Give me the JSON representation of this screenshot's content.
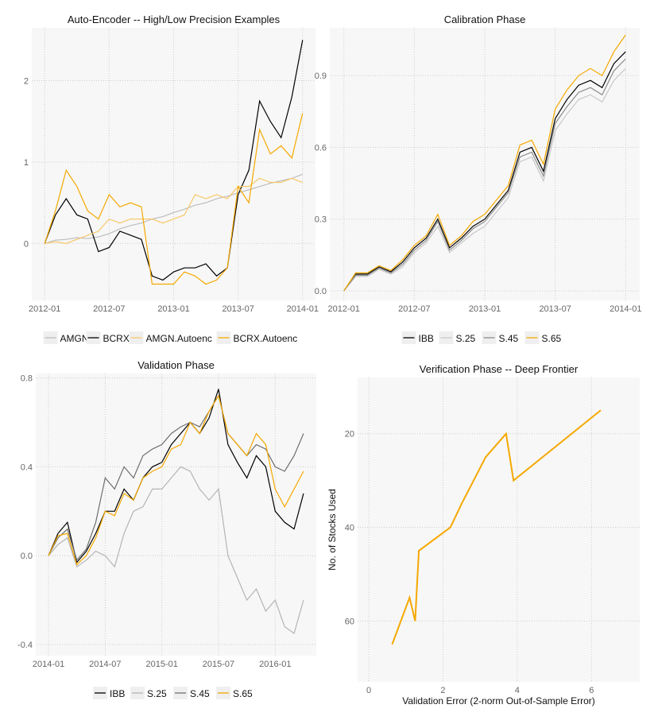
{
  "chart_data": [
    {
      "type": "line",
      "title": "Auto-Encoder -- High/Low Precision Examples",
      "xlabel": "",
      "ylabel": "",
      "x_ticks": [
        "2012-01",
        "2012-07",
        "2013-01",
        "2013-07",
        "2014-01"
      ],
      "y_ticks": [
        0,
        1,
        2
      ],
      "ylim": [
        -0.7,
        2.65
      ],
      "grid": true,
      "legend": "bottom",
      "x": [
        "2012-01",
        "2012-02",
        "2012-03",
        "2012-04",
        "2012-05",
        "2012-06",
        "2012-07",
        "2012-08",
        "2012-09",
        "2012-10",
        "2012-11",
        "2012-12",
        "2013-01",
        "2013-02",
        "2013-03",
        "2013-04",
        "2013-05",
        "2013-06",
        "2013-07",
        "2013-08",
        "2013-09",
        "2013-10",
        "2013-11",
        "2013-12",
        "2014-01"
      ],
      "series": [
        {
          "name": "AMGN",
          "color": "#bdbdbd",
          "values": [
            0,
            0.04,
            0.05,
            0.07,
            0.06,
            0.08,
            0.12,
            0.18,
            0.22,
            0.25,
            0.3,
            0.33,
            0.38,
            0.42,
            0.47,
            0.5,
            0.55,
            0.58,
            0.62,
            0.66,
            0.7,
            0.74,
            0.77,
            0.8,
            0.85
          ]
        },
        {
          "name": "BCRX",
          "color": "#000000",
          "values": [
            0,
            0.35,
            0.55,
            0.35,
            0.3,
            -0.1,
            -0.05,
            0.15,
            0.1,
            0.05,
            -0.4,
            -0.45,
            -0.35,
            -0.3,
            -0.3,
            -0.25,
            -0.4,
            -0.3,
            0.6,
            0.9,
            1.75,
            1.5,
            1.3,
            1.8,
            2.5
          ]
        },
        {
          "name": "AMGN.Autoenc",
          "color": "#f7c86a",
          "values": [
            0,
            0.02,
            0,
            0.05,
            0.1,
            0.15,
            0.3,
            0.25,
            0.3,
            0.3,
            0.3,
            0.25,
            0.3,
            0.35,
            0.6,
            0.55,
            0.6,
            0.55,
            0.7,
            0.7,
            0.8,
            0.75,
            0.75,
            0.8,
            0.75
          ]
        },
        {
          "name": "BCRX.Autoenc",
          "color": "#f5a800",
          "values": [
            0,
            0.4,
            0.9,
            0.7,
            0.4,
            0.3,
            0.6,
            0.45,
            0.5,
            0.45,
            -0.5,
            -0.5,
            -0.5,
            -0.35,
            -0.4,
            -0.5,
            -0.45,
            -0.3,
            0.7,
            0.5,
            1.4,
            1.1,
            1.2,
            1.05,
            1.6
          ]
        }
      ]
    },
    {
      "type": "line",
      "title": "Calibration Phase",
      "xlabel": "",
      "ylabel": "",
      "x_ticks": [
        "2012-01",
        "2012-07",
        "2013-01",
        "2013-07",
        "2014-01"
      ],
      "y_ticks": [
        0.0,
        0.3,
        0.6,
        0.9
      ],
      "y_tick_labels": [
        "0.0",
        "0.3",
        "0.6",
        "0.9"
      ],
      "ylim": [
        -0.04,
        1.1
      ],
      "grid": true,
      "legend": "bottom",
      "x": [
        "2012-01",
        "2012-02",
        "2012-03",
        "2012-04",
        "2012-05",
        "2012-06",
        "2012-07",
        "2012-08",
        "2012-09",
        "2012-10",
        "2012-11",
        "2012-12",
        "2013-01",
        "2013-02",
        "2013-03",
        "2013-04",
        "2013-05",
        "2013-06",
        "2013-07",
        "2013-08",
        "2013-09",
        "2013-10",
        "2013-11",
        "2013-12",
        "2014-01"
      ],
      "series": [
        {
          "name": "IBB",
          "color": "#000000",
          "values": [
            0,
            0.07,
            0.07,
            0.1,
            0.08,
            0.12,
            0.18,
            0.22,
            0.3,
            0.18,
            0.22,
            0.27,
            0.3,
            0.36,
            0.42,
            0.58,
            0.6,
            0.5,
            0.72,
            0.8,
            0.86,
            0.88,
            0.85,
            0.95,
            1.0
          ]
        },
        {
          "name": "S.25",
          "color": "#c8c8c8",
          "values": [
            0,
            0.06,
            0.06,
            0.09,
            0.07,
            0.1,
            0.16,
            0.2,
            0.27,
            0.16,
            0.2,
            0.24,
            0.27,
            0.33,
            0.39,
            0.54,
            0.56,
            0.46,
            0.67,
            0.74,
            0.8,
            0.82,
            0.79,
            0.88,
            0.93
          ]
        },
        {
          "name": "S.45",
          "color": "#8c8c8c",
          "values": [
            0,
            0.065,
            0.065,
            0.095,
            0.075,
            0.11,
            0.17,
            0.21,
            0.29,
            0.17,
            0.21,
            0.26,
            0.29,
            0.35,
            0.41,
            0.56,
            0.58,
            0.48,
            0.7,
            0.77,
            0.83,
            0.85,
            0.82,
            0.92,
            0.97
          ]
        },
        {
          "name": "S.65",
          "color": "#f5a800",
          "values": [
            0,
            0.075,
            0.075,
            0.105,
            0.085,
            0.13,
            0.19,
            0.23,
            0.32,
            0.19,
            0.23,
            0.29,
            0.32,
            0.38,
            0.44,
            0.61,
            0.63,
            0.53,
            0.76,
            0.84,
            0.9,
            0.93,
            0.9,
            1.0,
            1.07
          ]
        }
      ]
    },
    {
      "type": "line",
      "title": "Validation Phase",
      "xlabel": "",
      "ylabel": "",
      "x_ticks": [
        "2014-01",
        "2014-07",
        "2015-01",
        "2015-07",
        "2016-01"
      ],
      "y_ticks": [
        -0.4,
        0.0,
        0.4,
        0.8
      ],
      "y_tick_labels": [
        "-0.4",
        "0.0",
        "0.4",
        "0.8"
      ],
      "ylim": [
        -0.45,
        0.82
      ],
      "grid": true,
      "legend": "bottom",
      "x": [
        "2014-01",
        "2014-02",
        "2014-03",
        "2014-04",
        "2014-05",
        "2014-06",
        "2014-07",
        "2014-08",
        "2014-09",
        "2014-10",
        "2014-11",
        "2014-12",
        "2015-01",
        "2015-02",
        "2015-03",
        "2015-04",
        "2015-05",
        "2015-06",
        "2015-07",
        "2015-08",
        "2015-09",
        "2015-10",
        "2015-11",
        "2015-12",
        "2016-01",
        "2016-02",
        "2016-03",
        "2016-04"
      ],
      "series": [
        {
          "name": "IBB",
          "color": "#000000",
          "values": [
            0,
            0.1,
            0.15,
            -0.03,
            0.02,
            0.1,
            0.2,
            0.2,
            0.3,
            0.25,
            0.35,
            0.4,
            0.42,
            0.5,
            0.55,
            0.6,
            0.55,
            0.62,
            0.75,
            0.5,
            0.42,
            0.35,
            0.45,
            0.4,
            0.2,
            0.15,
            0.12,
            0.28
          ]
        },
        {
          "name": "S.25",
          "color": "#b4b4b4",
          "values": [
            0,
            0.05,
            0.08,
            -0.05,
            -0.02,
            0.02,
            0.0,
            -0.05,
            0.1,
            0.2,
            0.22,
            0.3,
            0.3,
            0.35,
            0.4,
            0.38,
            0.3,
            0.25,
            0.3,
            0.0,
            -0.1,
            -0.2,
            -0.15,
            -0.25,
            -0.2,
            -0.32,
            -0.35,
            -0.2
          ]
        },
        {
          "name": "S.45",
          "color": "#6e6e6e",
          "values": [
            0,
            0.08,
            0.12,
            -0.02,
            0.03,
            0.15,
            0.35,
            0.3,
            0.4,
            0.35,
            0.45,
            0.48,
            0.5,
            0.55,
            0.58,
            0.6,
            0.58,
            0.65,
            0.72,
            0.55,
            0.5,
            0.45,
            0.5,
            0.48,
            0.4,
            0.38,
            0.45,
            0.55
          ]
        },
        {
          "name": "S.65",
          "color": "#f5a800",
          "values": [
            0,
            0.09,
            0.1,
            -0.04,
            0.0,
            0.08,
            0.2,
            0.18,
            0.28,
            0.25,
            0.35,
            0.38,
            0.4,
            0.48,
            0.5,
            0.6,
            0.55,
            0.65,
            0.72,
            0.55,
            0.5,
            0.45,
            0.55,
            0.5,
            0.3,
            0.22,
            0.3,
            0.38
          ]
        }
      ]
    },
    {
      "type": "line",
      "title": "Verification Phase -- Deep Frontier",
      "xlabel": "Validation Error (2-norm Out-of-Sample Error)",
      "ylabel": "No. of Stocks Used",
      "x_ticks": [
        0,
        2,
        4,
        6
      ],
      "y_ticks": [
        20,
        40,
        60
      ],
      "xlim": [
        -0.3,
        7.3
      ],
      "ylim": [
        73,
        8
      ],
      "y_reversed": true,
      "grid": true,
      "series": [
        {
          "color": "#f5a800",
          "x": [
            0.63,
            1.1,
            1.25,
            1.35,
            2.2,
            2.5,
            3.15,
            3.7,
            3.9,
            6.25
          ],
          "y": [
            65,
            55,
            60,
            45,
            40,
            35,
            25,
            20,
            30,
            15
          ]
        }
      ]
    }
  ]
}
